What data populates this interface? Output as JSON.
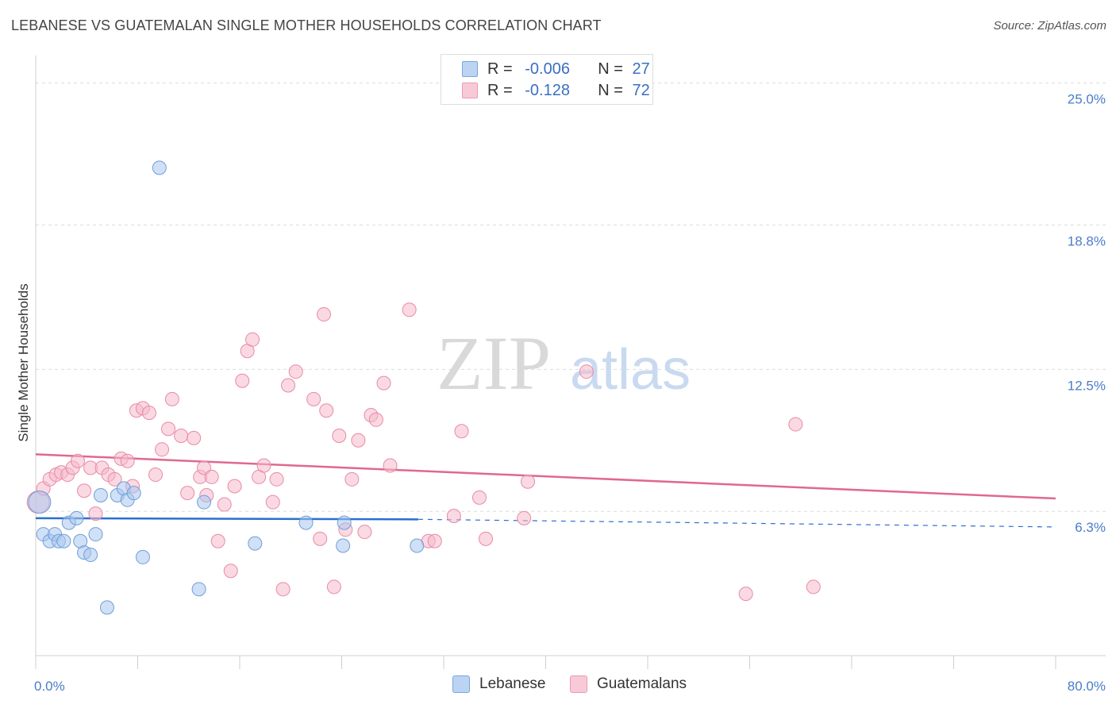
{
  "header": {
    "title": "LEBANESE VS GUATEMALAN SINGLE MOTHER HOUSEHOLDS CORRELATION CHART",
    "source": "Source: ZipAtlas.com"
  },
  "legend": {
    "rows": [
      {
        "r_label": "R =",
        "r_value": "-0.006",
        "n_label": "N =",
        "n_value": "27"
      },
      {
        "r_label": "R =",
        "r_value": "-0.128",
        "n_label": "N =",
        "n_value": "72"
      }
    ]
  },
  "bottom_legend": {
    "lebanese": "Lebanese",
    "guatemalans": "Guatemalans"
  },
  "watermark": {
    "zip": "ZIP",
    "atlas": "atlas"
  },
  "colors": {
    "lebanese_fill": "#a9c7ef",
    "lebanese_stroke": "#6f9fd8",
    "lebanese_line": "#2a6fcf",
    "guatemalan_fill": "#f6b9cb",
    "guatemalan_stroke": "#e88aa8",
    "guatemalan_line": "#e0688f",
    "grid": "#dcdcdc",
    "axis_text": "#4a7cc9"
  },
  "chart_data": {
    "type": "scatter",
    "title": "LEBANESE VS GUATEMALAN SINGLE MOTHER HOUSEHOLDS CORRELATION CHART",
    "xlabel": "",
    "ylabel": "Single Mother Households",
    "xlim": [
      0,
      80
    ],
    "ylim": [
      0,
      26.2
    ],
    "x_tick_labels": [
      "0.0%",
      "80.0%"
    ],
    "y_ticks": [
      6.3,
      12.5,
      18.8,
      25.0
    ],
    "y_tick_labels": [
      "6.3%",
      "12.5%",
      "18.8%",
      "25.0%"
    ],
    "grid": true,
    "series": [
      {
        "name": "Lebanese",
        "points": [
          [
            0.3,
            6.7
          ],
          [
            0.6,
            5.3
          ],
          [
            1.1,
            5.0
          ],
          [
            1.5,
            5.3
          ],
          [
            1.8,
            5.0
          ],
          [
            2.2,
            5.0
          ],
          [
            2.6,
            5.8
          ],
          [
            3.2,
            6.0
          ],
          [
            3.5,
            5.0
          ],
          [
            3.8,
            4.5
          ],
          [
            4.3,
            4.4
          ],
          [
            4.7,
            5.3
          ],
          [
            5.1,
            7.0
          ],
          [
            5.6,
            2.1
          ],
          [
            6.4,
            7.0
          ],
          [
            6.9,
            7.3
          ],
          [
            7.2,
            6.8
          ],
          [
            7.7,
            7.1
          ],
          [
            8.4,
            4.3
          ],
          [
            9.7,
            21.3
          ],
          [
            12.8,
            2.9
          ],
          [
            13.2,
            6.7
          ],
          [
            17.2,
            4.9
          ],
          [
            21.2,
            5.8
          ],
          [
            24.1,
            4.8
          ],
          [
            24.2,
            5.8
          ],
          [
            29.9,
            4.8
          ]
        ],
        "trend": {
          "x": [
            0,
            30
          ],
          "y": [
            6.0,
            5.95
          ],
          "extended_to": 80
        }
      },
      {
        "name": "Guatemalans",
        "points": [
          [
            0.2,
            6.7
          ],
          [
            0.6,
            7.3
          ],
          [
            1.1,
            7.7
          ],
          [
            1.6,
            7.9
          ],
          [
            2.0,
            8.0
          ],
          [
            2.5,
            7.9
          ],
          [
            2.9,
            8.2
          ],
          [
            3.3,
            8.5
          ],
          [
            3.8,
            7.2
          ],
          [
            4.3,
            8.2
          ],
          [
            4.7,
            6.2
          ],
          [
            5.2,
            8.2
          ],
          [
            5.7,
            7.9
          ],
          [
            6.2,
            7.7
          ],
          [
            6.7,
            8.6
          ],
          [
            7.2,
            8.5
          ],
          [
            7.6,
            7.4
          ],
          [
            7.9,
            10.7
          ],
          [
            8.4,
            10.8
          ],
          [
            8.9,
            10.6
          ],
          [
            9.4,
            7.9
          ],
          [
            9.9,
            9.0
          ],
          [
            10.4,
            9.9
          ],
          [
            10.7,
            11.2
          ],
          [
            11.4,
            9.6
          ],
          [
            11.9,
            7.1
          ],
          [
            12.4,
            9.5
          ],
          [
            12.9,
            7.8
          ],
          [
            13.2,
            8.2
          ],
          [
            13.4,
            7.0
          ],
          [
            13.8,
            7.8
          ],
          [
            14.3,
            5.0
          ],
          [
            14.8,
            6.6
          ],
          [
            15.3,
            3.7
          ],
          [
            15.6,
            7.4
          ],
          [
            16.2,
            12.0
          ],
          [
            16.6,
            13.3
          ],
          [
            17.0,
            13.8
          ],
          [
            17.5,
            7.8
          ],
          [
            17.9,
            8.3
          ],
          [
            18.6,
            6.7
          ],
          [
            18.9,
            7.7
          ],
          [
            19.4,
            2.9
          ],
          [
            19.8,
            11.8
          ],
          [
            20.4,
            12.4
          ],
          [
            21.8,
            11.2
          ],
          [
            22.3,
            5.1
          ],
          [
            22.6,
            14.9
          ],
          [
            22.8,
            10.7
          ],
          [
            23.4,
            3.0
          ],
          [
            23.8,
            9.6
          ],
          [
            24.3,
            5.5
          ],
          [
            24.8,
            7.7
          ],
          [
            25.3,
            9.4
          ],
          [
            25.8,
            5.4
          ],
          [
            26.3,
            10.5
          ],
          [
            26.7,
            10.3
          ],
          [
            27.3,
            11.9
          ],
          [
            27.8,
            8.3
          ],
          [
            29.3,
            15.1
          ],
          [
            30.8,
            5.0
          ],
          [
            31.3,
            5.0
          ],
          [
            32.8,
            6.1
          ],
          [
            33.4,
            9.8
          ],
          [
            34.8,
            6.9
          ],
          [
            35.3,
            5.1
          ],
          [
            38.3,
            6.0
          ],
          [
            38.6,
            7.6
          ],
          [
            43.2,
            12.4
          ],
          [
            55.7,
            2.7
          ],
          [
            59.6,
            10.1
          ],
          [
            61.0,
            3.0
          ]
        ],
        "trend": {
          "x": [
            0,
            80
          ],
          "y": [
            8.79,
            6.86
          ]
        }
      }
    ]
  }
}
